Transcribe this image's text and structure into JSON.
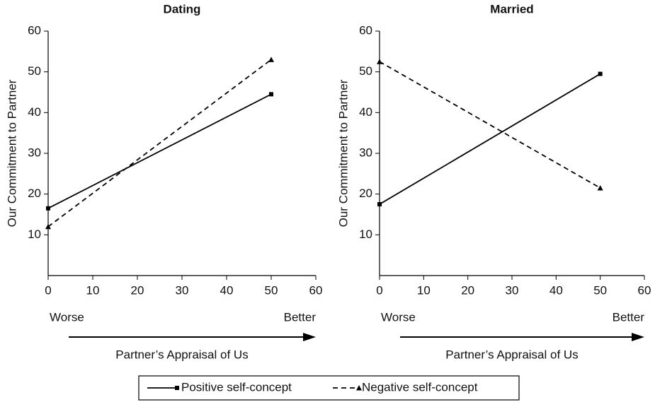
{
  "chart_data": [
    {
      "type": "line",
      "title": "Dating",
      "ylabel": "Our Commitment to Partner",
      "xlabel": "Partner’s Appraisal of Us",
      "x_low_label": "Worse",
      "x_high_label": "Better",
      "x": [
        0,
        50
      ],
      "series": [
        {
          "name": "Positive self-concept",
          "color": "#000000",
          "dashed": false,
          "marker": "square",
          "values": [
            16.5,
            44.5
          ]
        },
        {
          "name": "Negative self-concept",
          "color": "#000000",
          "dashed": true,
          "marker": "triangle",
          "values": [
            12,
            53
          ]
        }
      ],
      "xlim": [
        0,
        60
      ],
      "ylim": [
        0,
        60
      ],
      "xticks": [
        0,
        10,
        20,
        30,
        40,
        50,
        60
      ],
      "yticks": [
        10,
        20,
        30,
        40,
        50,
        60
      ]
    },
    {
      "type": "line",
      "title": "Married",
      "ylabel": "Our Commitment to Partner",
      "xlabel": "Partner’s Appraisal of Us",
      "x_low_label": "Worse",
      "x_high_label": "Better",
      "x": [
        0,
        50
      ],
      "series": [
        {
          "color": "#000000",
          "dashed": false,
          "marker": "square",
          "values": [
            17.5,
            49.5
          ]
        },
        {
          "color": "#000000",
          "dashed": true,
          "marker": "triangle",
          "values": [
            52.5,
            21.5
          ]
        }
      ],
      "xlim": [
        0,
        60
      ],
      "ylim": [
        0,
        60
      ],
      "xticks": [
        0,
        10,
        20,
        30,
        40,
        50,
        60
      ],
      "yticks": [
        10,
        20,
        30,
        40,
        50,
        60
      ]
    }
  ]
}
